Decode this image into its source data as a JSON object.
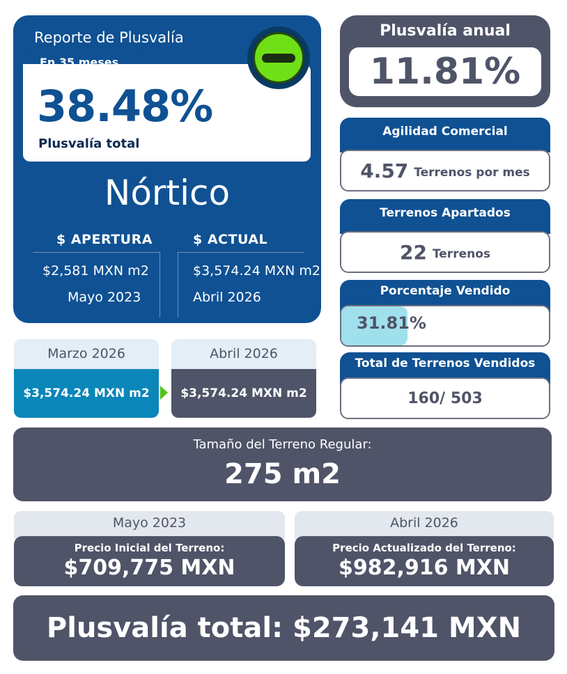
{
  "report": {
    "title": "Reporte de Plusvalía",
    "period": "En 35 meses",
    "total_percent": "38.48%",
    "total_label": "Plusvalía total",
    "project_name": "Nórtico",
    "badge_icon": "minus-circle-icon",
    "opening": {
      "header": "$ APERTURA",
      "price": "$2,581 MXN m2",
      "date": "Mayo 2023"
    },
    "current": {
      "header": "$ ACTUAL",
      "price": "$3,574.24 MXN m2",
      "date": "Abril 2026"
    }
  },
  "annual": {
    "title": "Plusvalía anual",
    "value": "11.81%"
  },
  "stats": {
    "agility": {
      "title": "Agilidad Comercial",
      "value": "4.57",
      "unit": "Terrenos por mes"
    },
    "reserved": {
      "title": "Terrenos Apartados",
      "value": "22",
      "unit": "Terrenos"
    },
    "sold_pct": {
      "title": "Porcentaje Vendido",
      "value": "31.81%",
      "fraction": 0.3181
    },
    "sold_total": {
      "title": "Total de Terrenos Vendidos",
      "value": "160/ 503"
    }
  },
  "months": {
    "previous": {
      "label": "Marzo 2026",
      "price": "$3,574.24 MXN m2"
    },
    "current": {
      "label": "Abril 2026",
      "price": "$3,574.24 MXN m2"
    }
  },
  "lot_size": {
    "label": "Tamaño del Terreno Regular:",
    "value": "275 m2"
  },
  "prices": {
    "initial": {
      "date": "Mayo 2023",
      "label": "Precio Inicial del Terreno:",
      "value": "$709,775 MXN"
    },
    "updated": {
      "date": "Abril 2026",
      "label": "Precio Actualizado del Terreno:",
      "value": "$982,916 MXN"
    }
  },
  "total_gain": "Plusvalía total: $273,141 MXN",
  "colors": {
    "primary_blue": "#0f5193",
    "slate": "#4f5468",
    "cyan_button": "#0a86b8",
    "progress_fill": "#9fe0ec",
    "badge_green": "#6fe017"
  }
}
